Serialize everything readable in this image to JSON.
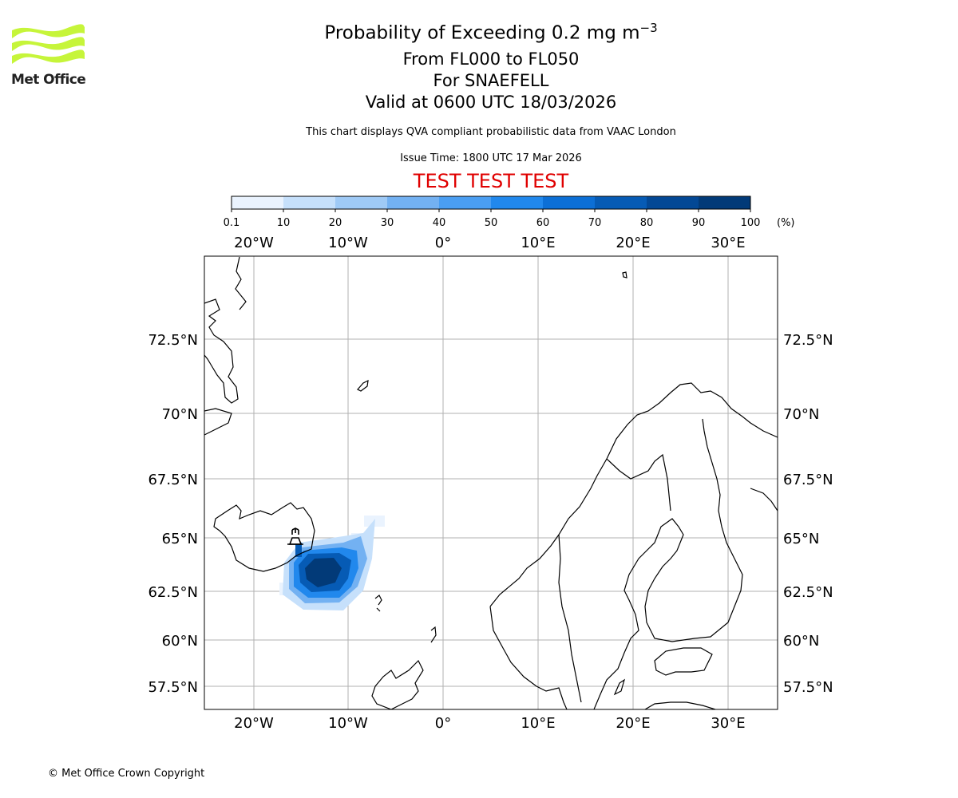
{
  "logo": {
    "text": "Met Office",
    "icon": "met-office-wave-logo"
  },
  "header": {
    "title": "Probability of Exceeding 0.2 mg m",
    "title_sup": "−3",
    "levels": "From FL000 to FL050",
    "volcano": "For SNAEFELL",
    "valid": "Valid at 0600 UTC 18/03/2026",
    "note": "This chart displays QVA compliant probabilistic data from VAAC London",
    "issue_time": "Issue Time: 1800 UTC 17 Mar 2026",
    "test_banner": "TEST TEST TEST"
  },
  "colorbar": {
    "ticks": [
      "0.1",
      "10",
      "20",
      "30",
      "40",
      "50",
      "60",
      "70",
      "80",
      "90",
      "100"
    ],
    "unit": "(%)",
    "colors": [
      "#eaf3fe",
      "#c6e0fb",
      "#9fcaf6",
      "#73b1f2",
      "#4a9ef2",
      "#2188ed",
      "#0c6fd6",
      "#065bb5",
      "#034895",
      "#023a78",
      "#012a58"
    ]
  },
  "map": {
    "lon_labels": [
      "20°W",
      "10°W",
      "0°",
      "10°E",
      "20°E",
      "30°E"
    ],
    "lat_labels": [
      "72.5°N",
      "70°N",
      "67.5°N",
      "65°N",
      "62.5°N",
      "60°N",
      "57.5°N"
    ],
    "volcano_icon": "volcano-icon",
    "plume_colors": {
      "faint": "#eaf3fe",
      "light": "#c6e0fb",
      "mid": "#73b1f2",
      "strong": "#2188ed",
      "deep": "#065bb5",
      "core": "#023a78"
    }
  },
  "footer": {
    "copyright": "© Met Office Crown Copyright"
  }
}
